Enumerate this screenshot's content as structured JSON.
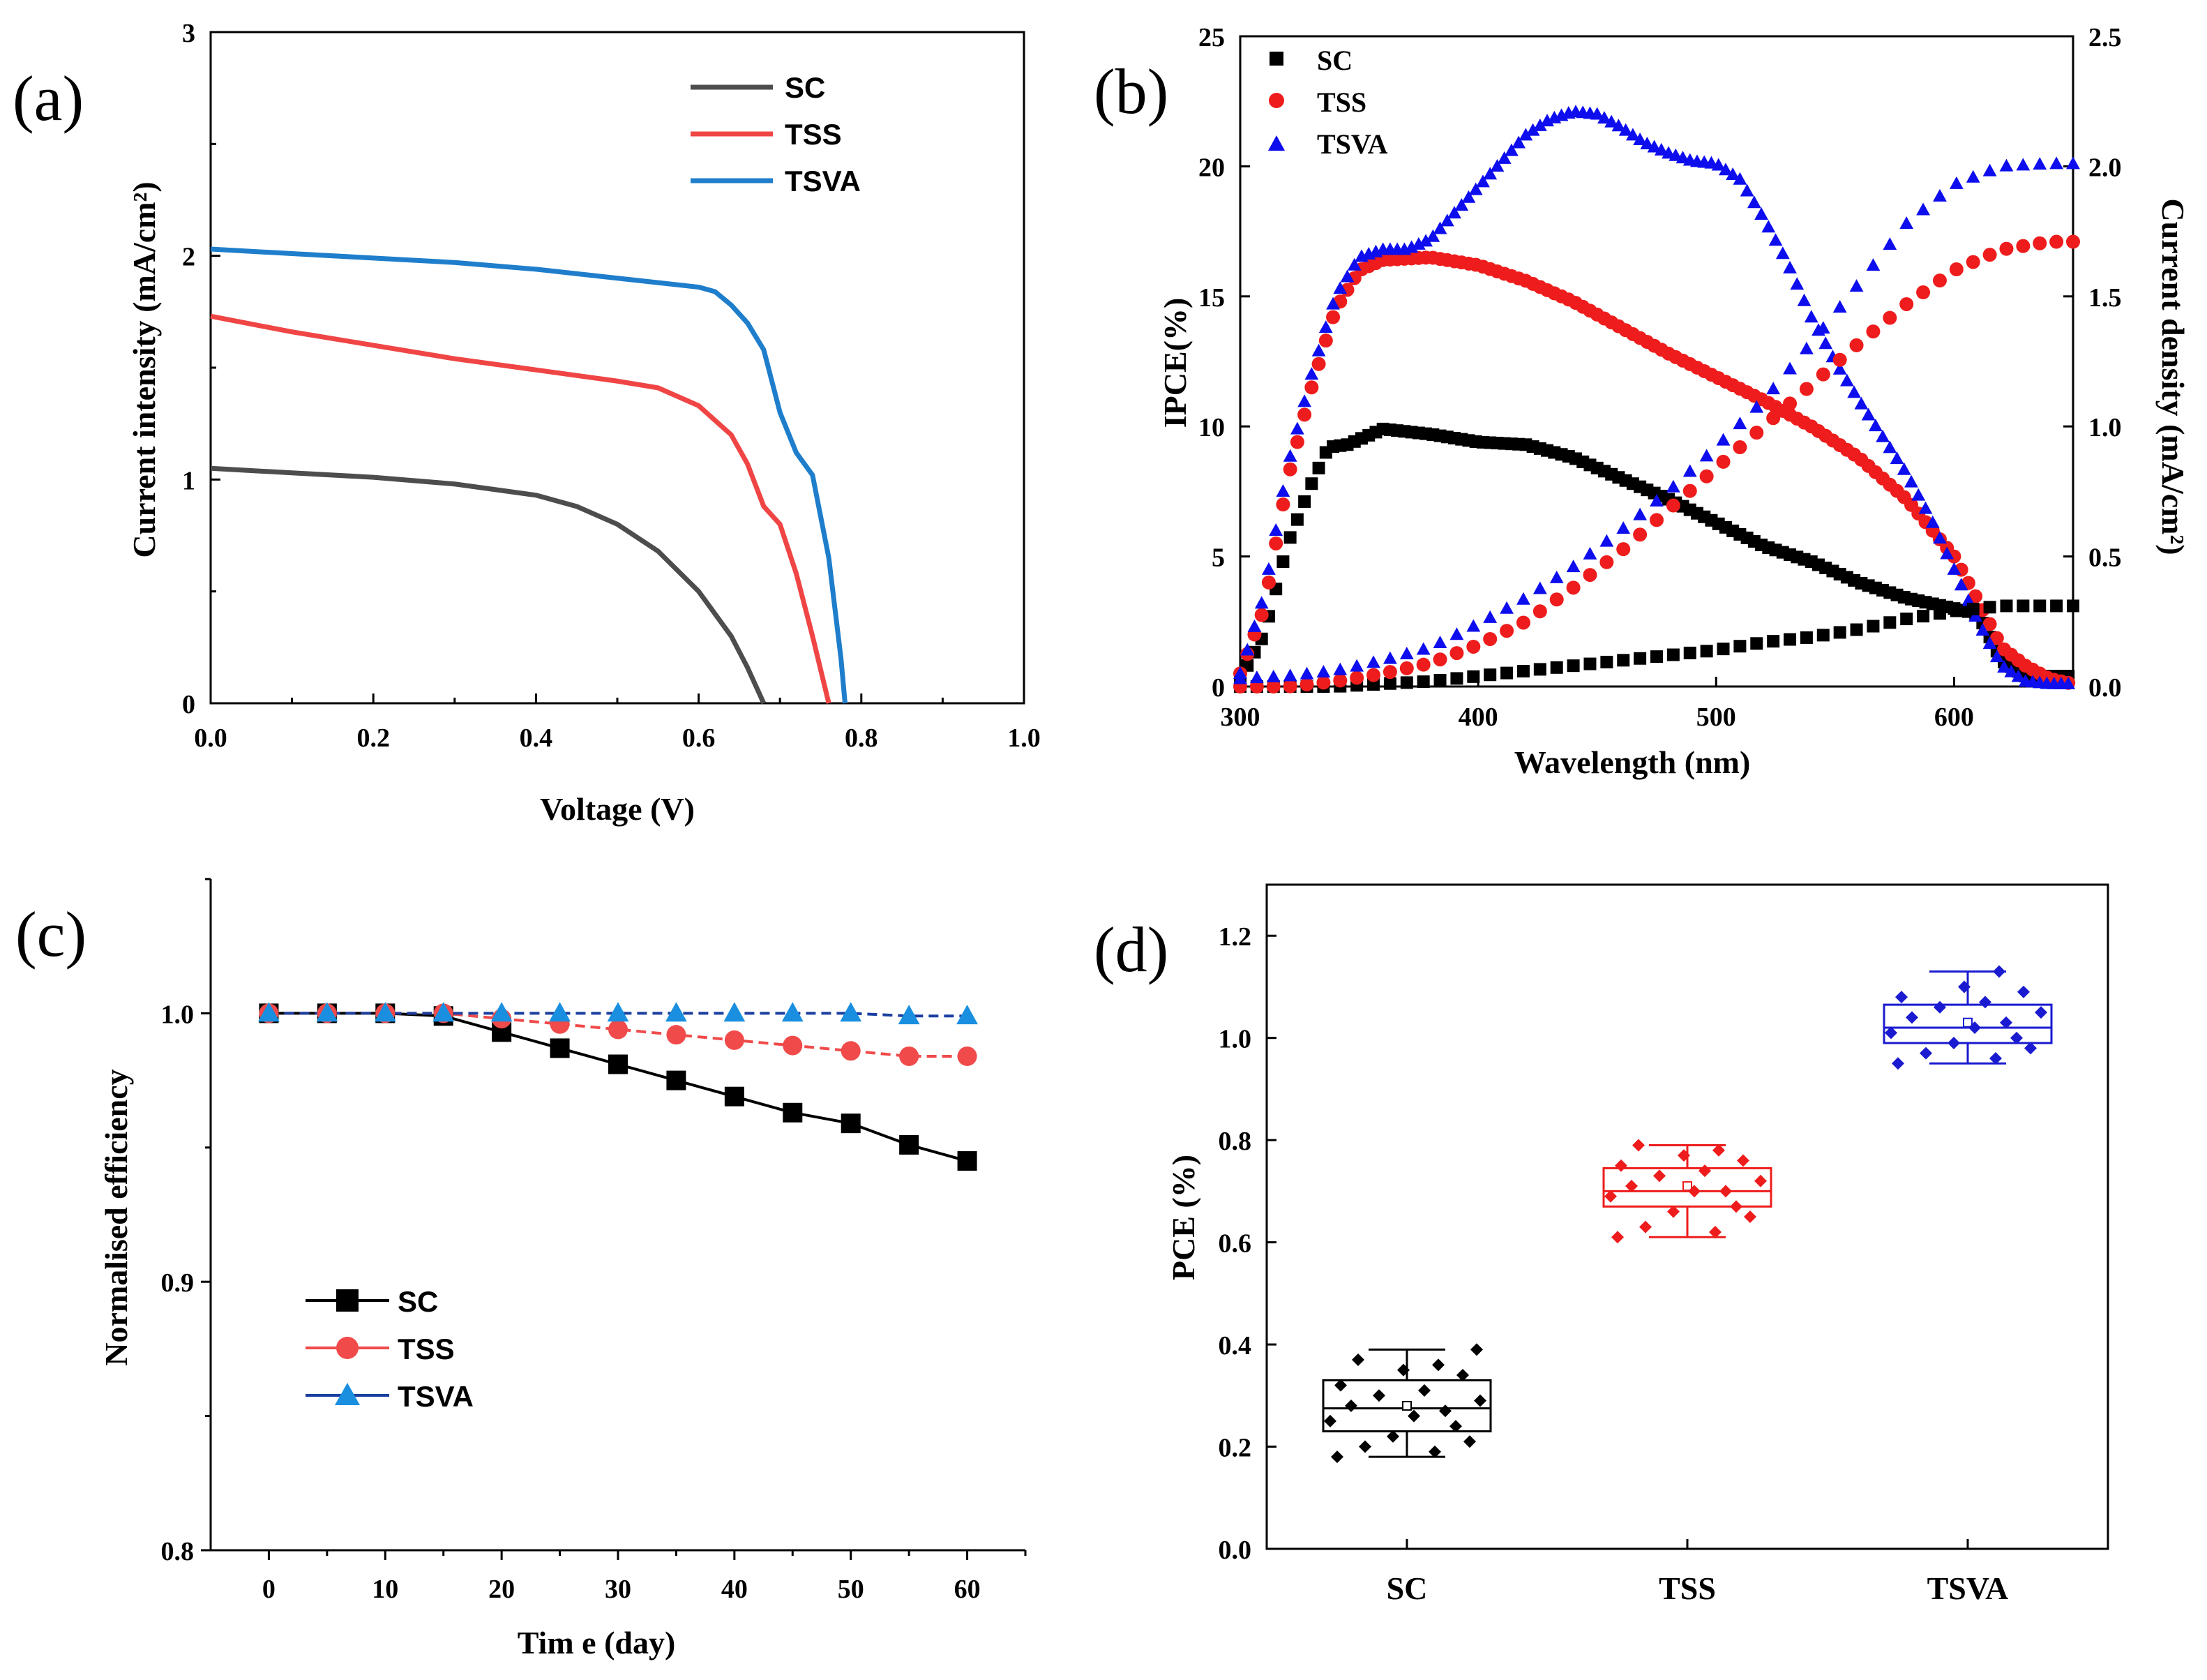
{
  "chart_data": [
    {
      "panel": "(a)",
      "type": "line",
      "xlabel": "Voltage (V)",
      "ylabel": "Current intensity (mA/cm²)",
      "xlim": [
        0.0,
        1.0
      ],
      "ylim": [
        0,
        3
      ],
      "xticks": [
        "0.0",
        "0.2",
        "0.4",
        "0.6",
        "0.8",
        "1.0"
      ],
      "yticks": [
        "0",
        "1",
        "2",
        "3"
      ],
      "legend_position": "top-right",
      "series": [
        {
          "name": "SC",
          "color": "#4d4d4d",
          "x": [
            0,
            0.1,
            0.2,
            0.3,
            0.4,
            0.45,
            0.5,
            0.55,
            0.6,
            0.64,
            0.66,
            0.68
          ],
          "y": [
            1.05,
            1.03,
            1.01,
            0.98,
            0.93,
            0.88,
            0.8,
            0.68,
            0.5,
            0.3,
            0.16,
            0
          ]
        },
        {
          "name": "TSS",
          "color": "#f04545",
          "x": [
            0,
            0.1,
            0.2,
            0.3,
            0.4,
            0.5,
            0.55,
            0.6,
            0.64,
            0.66,
            0.68,
            0.7,
            0.72,
            0.74,
            0.76
          ],
          "y": [
            1.73,
            1.66,
            1.6,
            1.54,
            1.49,
            1.44,
            1.41,
            1.33,
            1.2,
            1.07,
            0.88,
            0.8,
            0.58,
            0.3,
            0
          ]
        },
        {
          "name": "TSVA",
          "color": "#1f7ecb",
          "x": [
            0,
            0.1,
            0.2,
            0.3,
            0.4,
            0.5,
            0.55,
            0.6,
            0.62,
            0.64,
            0.66,
            0.68,
            0.7,
            0.72,
            0.74,
            0.76,
            0.775,
            0.78
          ],
          "y": [
            2.03,
            2.01,
            1.99,
            1.97,
            1.94,
            1.9,
            1.88,
            1.86,
            1.84,
            1.78,
            1.7,
            1.58,
            1.3,
            1.12,
            1.02,
            0.65,
            0.2,
            0
          ]
        }
      ]
    },
    {
      "panel": "(b)",
      "type": "scatter",
      "xlabel": "Wavelength (nm)",
      "ylabel_left": "IPCE(%)",
      "ylabel_right": "Current density (mA/cm²)",
      "xlim": [
        300,
        650
      ],
      "ylim_left": [
        0,
        25
      ],
      "ylim_right": [
        0,
        2.5
      ],
      "xticks": [
        "300",
        "400",
        "500",
        "600"
      ],
      "yticks_left": [
        "0",
        "5",
        "10",
        "15",
        "20",
        "25"
      ],
      "yticks_right": [
        "0.0",
        "0.5",
        "1.0",
        "1.5",
        "2.0",
        "2.5"
      ],
      "legend_position": "top-left",
      "series": [
        {
          "name": "SC",
          "marker": "square",
          "color": "#000000",
          "axis": "left",
          "x": [
            300,
            310,
            320,
            330,
            337,
            345,
            360,
            380,
            400,
            420,
            440,
            460,
            480,
            500,
            520,
            540,
            560,
            580,
            600,
            610,
            620,
            630,
            640,
            650
          ],
          "y": [
            0.3,
            2,
            5.5,
            7.8,
            9.2,
            9.3,
            9.9,
            9.7,
            9.4,
            9.3,
            8.8,
            8.0,
            7.2,
            6.3,
            5.4,
            4.8,
            4.0,
            3.4,
            3.0,
            2.8,
            1.0,
            0.4,
            0.4,
            0.4
          ]
        },
        {
          "name": "TSS",
          "marker": "circle",
          "color": "#ee1c1c",
          "axis": "left",
          "x": [
            300,
            310,
            320,
            330,
            340,
            350,
            360,
            380,
            400,
            420,
            440,
            460,
            480,
            500,
            520,
            540,
            560,
            580,
            600,
            610,
            620,
            630,
            640,
            650
          ],
          "y": [
            0.5,
            3,
            8,
            11.5,
            14.5,
            16,
            16.4,
            16.5,
            16.2,
            15.6,
            14.8,
            13.8,
            12.8,
            11.9,
            11.0,
            10.0,
            8.8,
            7.2,
            5.0,
            3.3,
            1.5,
            0.8,
            0.3,
            0.1
          ]
        },
        {
          "name": "TSVA",
          "marker": "triangle",
          "color": "#0d0dee",
          "axis": "left",
          "x": [
            300,
            310,
            320,
            330,
            340,
            350,
            360,
            370,
            380,
            390,
            400,
            410,
            420,
            430,
            440,
            450,
            460,
            470,
            480,
            490,
            500,
            510,
            520,
            530,
            540,
            550,
            560,
            570,
            580,
            590,
            600,
            610,
            620,
            630,
            640,
            650
          ],
          "y": [
            0.5,
            3.5,
            8.5,
            12,
            15,
            16.5,
            16.8,
            16.8,
            17.2,
            18.2,
            19.2,
            20.2,
            21.2,
            21.8,
            22.1,
            22.0,
            21.5,
            20.9,
            20.5,
            20.2,
            20.1,
            19.5,
            18.0,
            16.3,
            14.2,
            12.5,
            11.0,
            9.6,
            8.2,
            6.5,
            4.5,
            2.5,
            0.8,
            0.2,
            0.1,
            0.1
          ]
        },
        {
          "name": "SC current density",
          "marker": "square",
          "color": "#000000",
          "axis": "right",
          "x": [
            300,
            320,
            340,
            360,
            380,
            400,
            420,
            440,
            460,
            480,
            500,
            520,
            540,
            560,
            580,
            600,
            620,
            640,
            650
          ],
          "y": [
            0.0,
            0.0,
            0.0,
            0.01,
            0.02,
            0.04,
            0.06,
            0.08,
            0.1,
            0.12,
            0.14,
            0.17,
            0.19,
            0.22,
            0.26,
            0.29,
            0.31,
            0.31,
            0.31
          ]
        },
        {
          "name": "TSS current density",
          "marker": "circle",
          "color": "#ee1c1c",
          "axis": "right",
          "x": [
            300,
            320,
            340,
            360,
            380,
            400,
            420,
            440,
            460,
            480,
            500,
            520,
            540,
            560,
            580,
            600,
            620,
            640,
            650
          ],
          "y": [
            0.0,
            0.0,
            0.02,
            0.05,
            0.09,
            0.16,
            0.25,
            0.38,
            0.52,
            0.68,
            0.84,
            1.0,
            1.16,
            1.32,
            1.47,
            1.6,
            1.68,
            1.71,
            1.71
          ]
        },
        {
          "name": "TSVA current density",
          "marker": "triangle",
          "color": "#0d0dee",
          "axis": "right",
          "x": [
            300,
            320,
            340,
            360,
            380,
            400,
            420,
            440,
            460,
            480,
            500,
            520,
            540,
            560,
            580,
            600,
            620,
            640,
            650
          ],
          "y": [
            0.03,
            0.04,
            0.06,
            0.1,
            0.15,
            0.24,
            0.34,
            0.46,
            0.6,
            0.75,
            0.92,
            1.1,
            1.32,
            1.55,
            1.78,
            1.93,
            2.0,
            2.01,
            2.01
          ]
        }
      ]
    },
    {
      "panel": "(c)",
      "type": "line",
      "xlabel": "Tim e (day)",
      "ylabel": "Normalised efficiency",
      "xlim": [
        -5,
        65
      ],
      "ylim": [
        0.8,
        1.05
      ],
      "xticks": [
        "0",
        "10",
        "20",
        "30",
        "40",
        "50",
        "60"
      ],
      "yticks": [
        "0.8",
        "0.9",
        "1.0"
      ],
      "legend_position": "bottom-left",
      "series": [
        {
          "name": "SC",
          "marker": "square",
          "color": "#000000",
          "x": [
            0,
            5,
            10,
            15,
            20,
            25,
            30,
            35,
            40,
            45,
            50,
            55,
            60
          ],
          "y": [
            1.0,
            1.0,
            1.0,
            0.999,
            0.993,
            0.987,
            0.981,
            0.975,
            0.969,
            0.963,
            0.959,
            0.951,
            0.945
          ]
        },
        {
          "name": "TSS",
          "marker": "circle",
          "color": "#f04a4a",
          "x": [
            0,
            5,
            10,
            15,
            20,
            25,
            30,
            35,
            40,
            45,
            50,
            55,
            60
          ],
          "y": [
            1.0,
            1.0,
            1.0,
            1.0,
            0.998,
            0.996,
            0.994,
            0.992,
            0.99,
            0.988,
            0.986,
            0.984,
            0.984
          ]
        },
        {
          "name": "TSVA",
          "marker": "triangle",
          "color": "#1a8fe0",
          "x": [
            0,
            5,
            10,
            15,
            20,
            25,
            30,
            35,
            40,
            45,
            50,
            55,
            60
          ],
          "y": [
            1.0,
            1.0,
            1.0,
            1.0,
            1.0,
            1.0,
            1.0,
            1.0,
            1.0,
            1.0,
            1.0,
            0.999,
            0.999
          ]
        }
      ]
    },
    {
      "panel": "(d)",
      "type": "box",
      "ylabel": "PCE (%)",
      "ylim": [
        0.0,
        1.3
      ],
      "yticks": [
        "0.0",
        "0.2",
        "0.4",
        "0.6",
        "0.8",
        "1.0",
        "1.2"
      ],
      "categories": [
        "SC",
        "TSS",
        "TSVA"
      ],
      "series": [
        {
          "name": "SC",
          "color": "#000000",
          "whisker_low": 0.18,
          "q1": 0.23,
          "median": 0.275,
          "mean": 0.28,
          "q3": 0.33,
          "whisker_high": 0.39,
          "points": [
            0.18,
            0.19,
            0.2,
            0.21,
            0.22,
            0.24,
            0.25,
            0.26,
            0.27,
            0.28,
            0.29,
            0.3,
            0.31,
            0.32,
            0.34,
            0.35,
            0.36,
            0.37,
            0.39
          ]
        },
        {
          "name": "TSS",
          "color": "#ee1c1c",
          "whisker_low": 0.61,
          "q1": 0.67,
          "median": 0.7,
          "mean": 0.71,
          "q3": 0.745,
          "whisker_high": 0.79,
          "points": [
            0.61,
            0.62,
            0.63,
            0.65,
            0.66,
            0.67,
            0.69,
            0.7,
            0.7,
            0.71,
            0.72,
            0.73,
            0.74,
            0.75,
            0.76,
            0.77,
            0.78,
            0.79
          ]
        },
        {
          "name": "TSVA",
          "color": "#1a1ad0",
          "whisker_low": 0.95,
          "q1": 0.99,
          "median": 1.02,
          "mean": 1.03,
          "q3": 1.065,
          "whisker_high": 1.13,
          "points": [
            0.95,
            0.96,
            0.97,
            0.98,
            0.99,
            1.0,
            1.01,
            1.02,
            1.03,
            1.04,
            1.05,
            1.06,
            1.07,
            1.08,
            1.09,
            1.1,
            1.13
          ]
        }
      ]
    }
  ]
}
